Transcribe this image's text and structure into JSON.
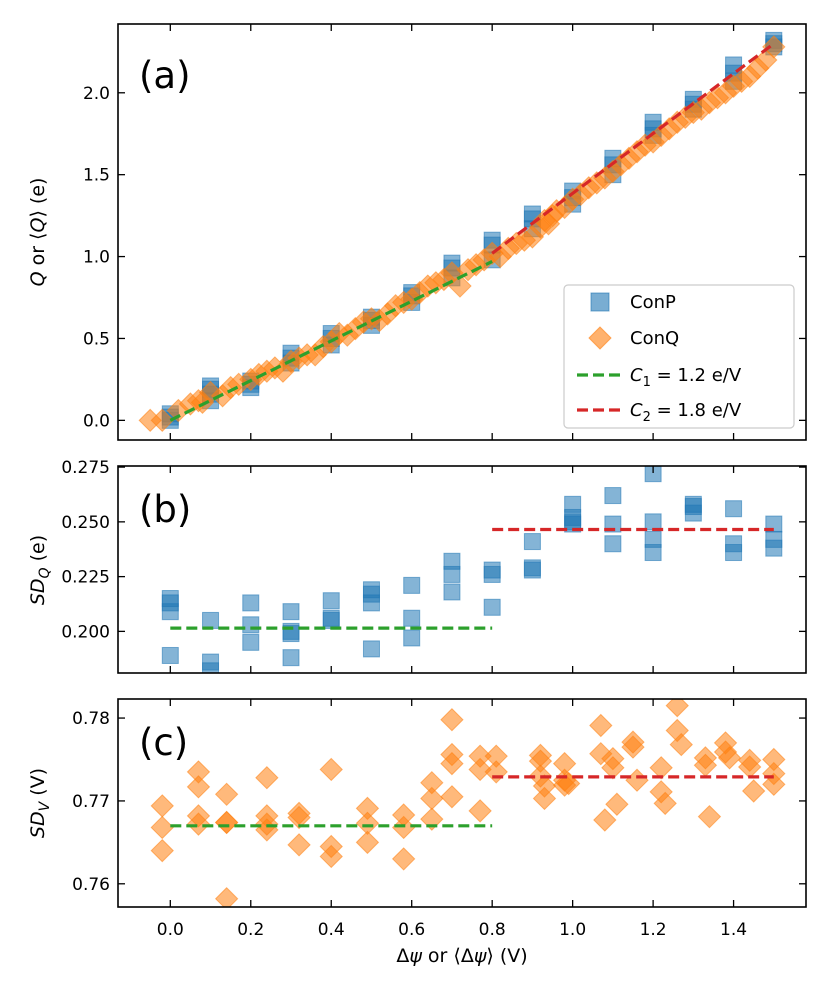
{
  "figure": {
    "xlabel": "Δψ or ⟨Δψ⟩ (V)",
    "colors": {
      "conp": "#1f77b4",
      "conq": "#ff7f0e",
      "c1": "#2ca02c",
      "c2": "#d62728"
    }
  },
  "legend": {
    "conp": "ConP",
    "conq": "ConQ",
    "c1_sym": "C",
    "c1_sub": "1",
    "c1_val": " = 1.2 e/V",
    "c2_sym": "C",
    "c2_sub": "2",
    "c2_val": " = 1.8 e/V"
  },
  "chart_data": [
    {
      "panel": "(a)",
      "type": "scatter",
      "ylabel": "Q or ⟨Q⟩ (e)",
      "xlim": [
        -0.13,
        1.58
      ],
      "ylim": [
        -0.12,
        2.42
      ],
      "xticks": [
        0.0,
        0.2,
        0.4,
        0.6,
        0.8,
        1.0,
        1.2,
        1.4
      ],
      "xticklabels": [
        "0.0",
        "0.2",
        "0.4",
        "0.6",
        "0.8",
        "1.0",
        "1.2",
        "1.4"
      ],
      "yticks": [
        0.0,
        0.5,
        1.0,
        1.5,
        2.0
      ],
      "yticklabels": [
        "0.0",
        "0.5",
        "1.0",
        "1.5",
        "2.0"
      ],
      "series": [
        {
          "name": "ConP",
          "marker": "square",
          "x": [
            0,
            0,
            0,
            0.1,
            0.1,
            0.1,
            0.1,
            0.2,
            0.2,
            0.2,
            0.3,
            0.3,
            0.3,
            0.4,
            0.4,
            0.4,
            0.5,
            0.5,
            0.5,
            0.6,
            0.6,
            0.6,
            0.7,
            0.7,
            0.7,
            0.8,
            0.8,
            0.8,
            0.9,
            0.9,
            0.9,
            1.0,
            1.0,
            1.0,
            1.1,
            1.1,
            1.1,
            1.2,
            1.2,
            1.2,
            1.3,
            1.3,
            1.3,
            1.4,
            1.4,
            1.4,
            1.5,
            1.5,
            1.5
          ],
          "y": [
            0.0,
            0.02,
            0.04,
            0.12,
            0.16,
            0.19,
            0.21,
            0.2,
            0.22,
            0.24,
            0.35,
            0.38,
            0.41,
            0.46,
            0.5,
            0.53,
            0.58,
            0.61,
            0.63,
            0.72,
            0.76,
            0.78,
            0.87,
            0.93,
            0.96,
            0.98,
            1.07,
            1.1,
            1.17,
            1.23,
            1.26,
            1.32,
            1.36,
            1.4,
            1.5,
            1.56,
            1.6,
            1.74,
            1.78,
            1.82,
            1.9,
            1.93,
            1.96,
            2.07,
            2.12,
            2.17,
            2.28,
            2.3,
            2.32
          ]
        },
        {
          "name": "ConQ",
          "marker": "diamond",
          "x": [
            -0.05,
            -0.02,
            0.02,
            0.05,
            0.07,
            0.08,
            0.1,
            0.13,
            0.15,
            0.17,
            0.2,
            0.22,
            0.24,
            0.26,
            0.28,
            0.3,
            0.32,
            0.34,
            0.36,
            0.38,
            0.4,
            0.42,
            0.44,
            0.46,
            0.48,
            0.5,
            0.52,
            0.54,
            0.56,
            0.58,
            0.6,
            0.62,
            0.64,
            0.66,
            0.68,
            0.7,
            0.72,
            0.74,
            0.76,
            0.78,
            0.8,
            0.82,
            0.84,
            0.86,
            0.88,
            0.9,
            0.92,
            0.93,
            0.94,
            0.95,
            0.96,
            0.98,
            1.0,
            1.02,
            1.04,
            1.06,
            1.08,
            1.1,
            1.12,
            1.14,
            1.16,
            1.18,
            1.2,
            1.22,
            1.24,
            1.26,
            1.28,
            1.3,
            1.32,
            1.34,
            1.36,
            1.38,
            1.4,
            1.42,
            1.44,
            1.46,
            1.48,
            1.5
          ],
          "y": [
            0.0,
            0.0,
            0.06,
            0.1,
            0.12,
            0.11,
            0.17,
            0.15,
            0.2,
            0.22,
            0.25,
            0.28,
            0.3,
            0.32,
            0.3,
            0.36,
            0.38,
            0.4,
            0.4,
            0.45,
            0.48,
            0.53,
            0.52,
            0.56,
            0.6,
            0.62,
            0.61,
            0.65,
            0.7,
            0.72,
            0.74,
            0.78,
            0.82,
            0.84,
            0.86,
            0.9,
            0.82,
            0.92,
            0.95,
            0.98,
            1.02,
            1.0,
            1.05,
            1.08,
            1.1,
            1.12,
            1.18,
            1.22,
            1.2,
            1.25,
            1.28,
            1.3,
            1.35,
            1.38,
            1.42,
            1.45,
            1.48,
            1.52,
            1.56,
            1.6,
            1.64,
            1.68,
            1.7,
            1.74,
            1.78,
            1.82,
            1.85,
            1.88,
            1.9,
            1.94,
            1.97,
            2.0,
            2.04,
            2.07,
            2.1,
            2.15,
            2.2,
            2.28
          ]
        },
        {
          "name": "C1 = 1.2 e/V",
          "type": "line",
          "style": "dashed",
          "x": [
            0.0,
            0.8
          ],
          "y": [
            0.0,
            0.97
          ]
        },
        {
          "name": "C2 = 1.8 e/V",
          "type": "line",
          "style": "dashed",
          "x": [
            0.8,
            1.5
          ],
          "y": [
            1.02,
            2.3
          ]
        }
      ]
    },
    {
      "panel": "(b)",
      "type": "scatter",
      "ylabel": "SD_Q (e)",
      "xlim": [
        -0.13,
        1.58
      ],
      "ylim": [
        0.181,
        0.2755
      ],
      "yticks": [
        0.2,
        0.225,
        0.25,
        0.275
      ],
      "yticklabels": [
        "0.200",
        "0.225",
        "0.250",
        "0.275"
      ],
      "series": [
        {
          "name": "ConP",
          "marker": "square",
          "x": [
            0,
            0,
            0,
            0,
            0.1,
            0.1,
            0.1,
            0.2,
            0.2,
            0.2,
            0.3,
            0.3,
            0.3,
            0.3,
            0.4,
            0.4,
            0.4,
            0.5,
            0.5,
            0.5,
            0.5,
            0.6,
            0.6,
            0.6,
            0.7,
            0.7,
            0.7,
            0.8,
            0.8,
            0.8,
            0.9,
            0.9,
            0.9,
            1.0,
            1.0,
            1.0,
            1.0,
            1.1,
            1.1,
            1.1,
            1.2,
            1.2,
            1.2,
            1.2,
            1.3,
            1.3,
            1.3,
            1.4,
            1.4,
            1.4,
            1.5,
            1.5,
            1.5
          ],
          "y": [
            0.189,
            0.209,
            0.213,
            0.215,
            0.186,
            0.182,
            0.205,
            0.195,
            0.203,
            0.213,
            0.199,
            0.188,
            0.2,
            0.209,
            0.205,
            0.206,
            0.214,
            0.192,
            0.213,
            0.217,
            0.219,
            0.197,
            0.206,
            0.221,
            0.218,
            0.226,
            0.232,
            0.211,
            0.226,
            0.228,
            0.228,
            0.229,
            0.241,
            0.249,
            0.25,
            0.252,
            0.258,
            0.24,
            0.249,
            0.262,
            0.236,
            0.242,
            0.272,
            0.25,
            0.254,
            0.257,
            0.258,
            0.236,
            0.24,
            0.256,
            0.238,
            0.242,
            0.249
          ]
        },
        {
          "name": "C1 level",
          "type": "line",
          "style": "dashed",
          "x": [
            0.0,
            0.8
          ],
          "y": [
            0.2015,
            0.2015
          ]
        },
        {
          "name": "C2 level",
          "type": "line",
          "style": "dashed",
          "x": [
            0.8,
            1.5
          ],
          "y": [
            0.2465,
            0.2465
          ]
        }
      ]
    },
    {
      "panel": "(c)",
      "type": "scatter",
      "ylabel": "SD_V (V)",
      "xlim": [
        -0.13,
        1.58
      ],
      "ylim": [
        0.7572,
        0.7823
      ],
      "yticks": [
        0.76,
        0.77,
        0.78
      ],
      "yticklabels": [
        "0.76",
        "0.77",
        "0.78"
      ],
      "series": [
        {
          "name": "ConQ",
          "marker": "diamond",
          "x": [
            -0.02,
            -0.02,
            -0.02,
            0.07,
            0.07,
            0.07,
            0.07,
            0.14,
            0.14,
            0.14,
            0.14,
            0.24,
            0.24,
            0.24,
            0.24,
            0.32,
            0.32,
            0.32,
            0.4,
            0.4,
            0.4,
            0.49,
            0.49,
            0.49,
            0.58,
            0.58,
            0.58,
            0.65,
            0.65,
            0.65,
            0.7,
            0.7,
            0.7,
            0.7,
            0.77,
            0.77,
            0.77,
            0.81,
            0.81,
            0.92,
            0.92,
            0.92,
            0.93,
            0.93,
            0.98,
            0.98,
            0.98,
            0.99,
            1.07,
            1.07,
            1.08,
            1.1,
            1.1,
            1.11,
            1.15,
            1.15,
            1.16,
            1.22,
            1.22,
            1.23,
            1.26,
            1.26,
            1.27,
            1.33,
            1.33,
            1.34,
            1.38,
            1.38,
            1.39,
            1.44,
            1.44,
            1.45,
            1.5,
            1.5,
            1.5
          ],
          "y": [
            0.7694,
            0.7668,
            0.764,
            0.7735,
            0.7717,
            0.7682,
            0.7672,
            0.7708,
            0.7674,
            0.7582,
            0.7674,
            0.7728,
            0.7682,
            0.7665,
            0.7672,
            0.7685,
            0.7647,
            0.768,
            0.7738,
            0.7645,
            0.7633,
            0.7691,
            0.765,
            0.7673,
            0.7683,
            0.763,
            0.7668,
            0.7722,
            0.7703,
            0.7678,
            0.7798,
            0.7756,
            0.7705,
            0.7745,
            0.7754,
            0.7738,
            0.7688,
            0.7754,
            0.7735,
            0.7755,
            0.7748,
            0.773,
            0.7718,
            0.7703,
            0.7745,
            0.7725,
            0.7719,
            0.7721,
            0.7791,
            0.7757,
            0.7677,
            0.7751,
            0.774,
            0.7696,
            0.7771,
            0.7765,
            0.7725,
            0.774,
            0.7711,
            0.7697,
            0.7815,
            0.7785,
            0.7768,
            0.7752,
            0.7743,
            0.7681,
            0.777,
            0.7759,
            0.7752,
            0.7749,
            0.7741,
            0.7712,
            0.775,
            0.7733,
            0.772
          ]
        },
        {
          "name": "C1 level",
          "type": "line",
          "style": "dashed",
          "x": [
            0.0,
            0.8
          ],
          "y": [
            0.767,
            0.767
          ]
        },
        {
          "name": "C2 level",
          "type": "line",
          "style": "dashed",
          "x": [
            0.8,
            1.5
          ],
          "y": [
            0.7729,
            0.7729
          ]
        }
      ]
    }
  ]
}
